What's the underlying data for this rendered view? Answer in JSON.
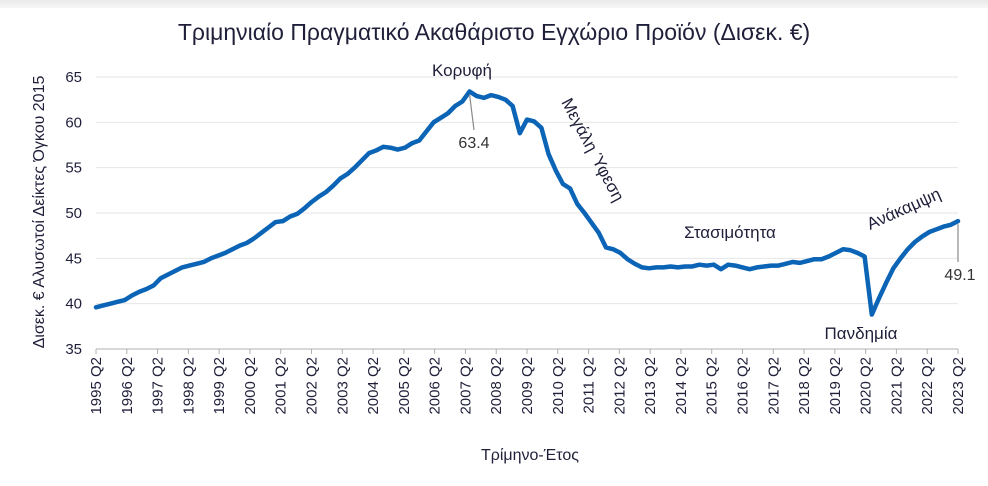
{
  "chart_data": {
    "type": "line",
    "title": "Τριμηνιαίο Πραγματικό Ακαθάριστο Εγχώριο Προϊόν (Δισεκ. €)",
    "xlabel": "Τρίμηνο-Έτος",
    "ylabel": "Δισεκ. € Αλυσωτοί Δείκτες Όγκου 2015",
    "ylim": [
      35,
      65
    ],
    "yticks": [
      "35",
      "40",
      "45",
      "50",
      "55",
      "60",
      "65"
    ],
    "xticks": [
      "1995 Q2",
      "1996 Q2",
      "1997 Q2",
      "1998 Q2",
      "1999 Q2",
      "2000 Q2",
      "2001 Q2",
      "2002 Q2",
      "2003 Q2",
      "2004 Q2",
      "2005 Q2",
      "2006 Q2",
      "2007 Q2",
      "2008 Q2",
      "2009 Q2",
      "2010 Q2",
      "2011 Q2",
      "2012 Q2",
      "2013 Q2",
      "2014 Q2",
      "2015 Q2",
      "2016 Q2",
      "2017 Q2",
      "2018 Q2",
      "2019 Q2",
      "2020 Q2",
      "2021 Q2",
      "2022 Q2",
      "2023 Q2"
    ],
    "line_color": "#0b64b5",
    "series": [
      {
        "values": [
          39.6,
          39.8,
          40.0,
          40.2,
          40.4,
          40.9,
          41.3,
          41.6,
          42.0,
          42.8,
          43.2,
          43.6,
          44.0,
          44.2,
          44.4,
          44.6,
          45.0,
          45.3,
          45.6,
          46.0,
          46.4,
          46.7,
          47.2,
          47.8,
          48.4,
          49.0,
          49.1,
          49.6,
          49.9,
          50.5,
          51.2,
          51.8,
          52.3,
          53.0,
          53.8,
          54.3,
          55.0,
          55.8,
          56.6,
          56.9,
          57.3,
          57.2,
          57.0,
          57.2,
          57.7,
          58.0,
          59.0,
          60.0,
          60.5,
          61.0,
          61.8,
          62.3,
          63.4,
          62.9,
          62.7,
          63.0,
          62.8,
          62.5,
          61.8,
          58.8,
          60.3,
          60.1,
          59.4,
          56.5,
          54.7,
          53.2,
          52.7,
          51.0,
          50.0,
          48.9,
          47.8,
          46.2,
          46.0,
          45.6,
          44.9,
          44.4,
          44.0,
          43.9,
          44.0,
          44.0,
          44.1,
          44.0,
          44.1,
          44.1,
          44.3,
          44.2,
          44.3,
          43.8,
          44.3,
          44.2,
          44.0,
          43.8,
          44.0,
          44.1,
          44.2,
          44.2,
          44.4,
          44.6,
          44.5,
          44.7,
          44.9,
          44.9,
          45.2,
          45.6,
          46.0,
          45.9,
          45.6,
          45.2,
          38.8,
          40.6,
          42.3,
          43.9,
          45.0,
          46.0,
          46.8,
          47.4,
          47.9,
          48.2,
          48.5,
          48.7,
          49.1
        ]
      }
    ],
    "annotations": {
      "peak_label": "Κορυφή",
      "peak_value": "63.4",
      "recession_label": "Μεγάλη Ύφεση",
      "stagnation_label": "Στασιμότητα",
      "pandemic_label": "Πανδημία",
      "recovery_label": "Ανάκαμψη",
      "last_value": "49.1"
    }
  }
}
